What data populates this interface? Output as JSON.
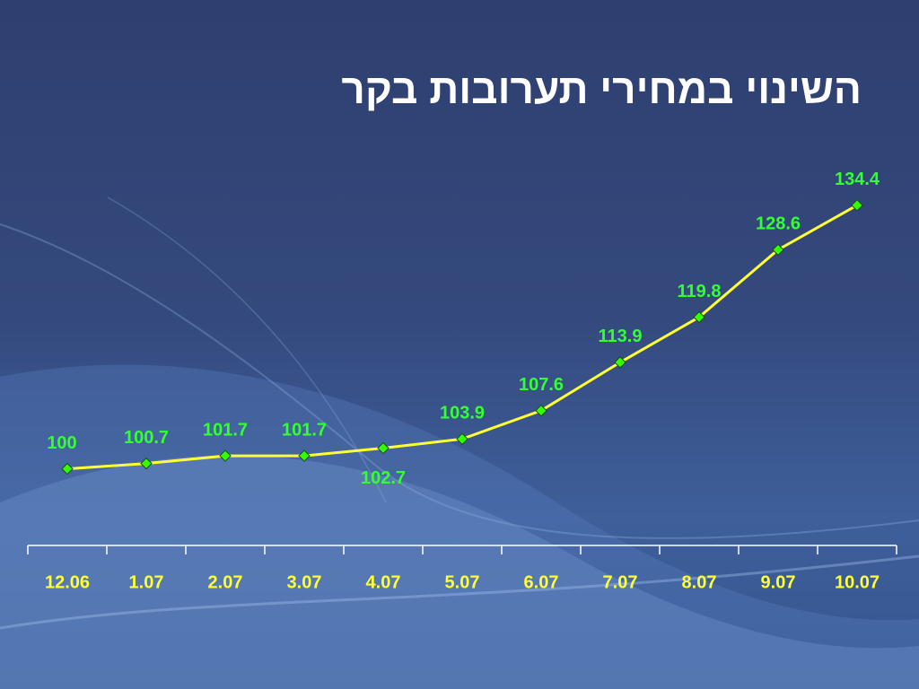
{
  "chart_data": {
    "type": "line",
    "title": "השינוי במחירי תערובות בקר",
    "categories": [
      "12.06",
      "1.07",
      "2.07",
      "3.07",
      "4.07",
      "5.07",
      "6.07",
      "7.07",
      "8.07",
      "9.07",
      "10.07"
    ],
    "values": [
      100,
      100.7,
      101.7,
      101.7,
      102.7,
      103.9,
      107.6,
      113.9,
      119.8,
      128.6,
      134.4
    ],
    "color": "#ffff33",
    "marker_color": "#33ff00",
    "label_color": "#33ff33",
    "axis_label_color": "#ffff33",
    "ylim": [
      90,
      140
    ]
  }
}
